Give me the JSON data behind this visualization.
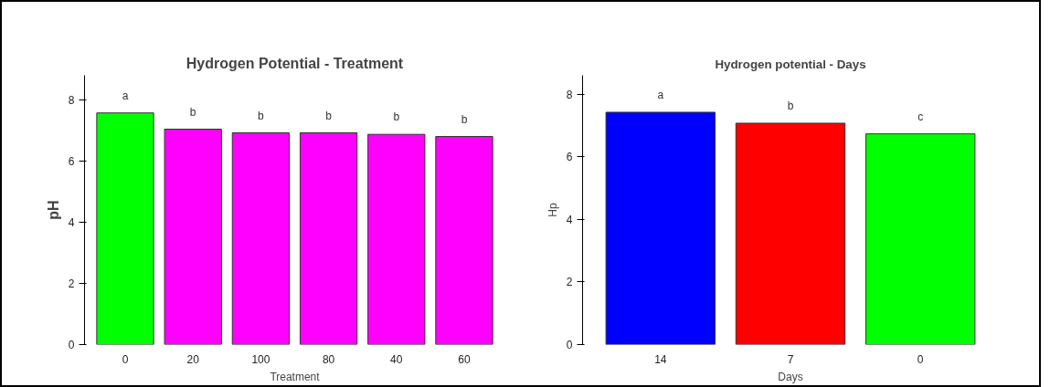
{
  "chart_data": [
    {
      "type": "bar",
      "title": "Hydrogen Potential - Treatment",
      "xlabel": "Treatment",
      "ylabel": "pH",
      "categories": [
        "0",
        "20",
        "100",
        "80",
        "40",
        "60"
      ],
      "values": [
        7.57,
        7.04,
        6.92,
        6.92,
        6.87,
        6.8
      ],
      "colors": [
        "#00ff00",
        "#ff00ff",
        "#ff00ff",
        "#ff00ff",
        "#ff00ff",
        "#ff00ff"
      ],
      "ylim": [
        0,
        8.8
      ],
      "yticks": [
        0,
        2,
        4,
        6,
        8
      ],
      "grid": false,
      "annotations": [
        "a",
        "b",
        "b",
        "b",
        "b",
        "b"
      ]
    },
    {
      "type": "bar",
      "title": "Hydrogen potential - Days",
      "xlabel": "Days",
      "ylabel": "Hp",
      "categories": [
        "14",
        "7",
        "0"
      ],
      "values": [
        7.42,
        7.07,
        6.73
      ],
      "colors": [
        "#0000ff",
        "#ff0000",
        "#00ff00"
      ],
      "ylim": [
        0,
        8.6
      ],
      "yticks": [
        0,
        2,
        4,
        6,
        8
      ],
      "grid": false,
      "annotations": [
        "a",
        "b",
        "c"
      ]
    }
  ]
}
